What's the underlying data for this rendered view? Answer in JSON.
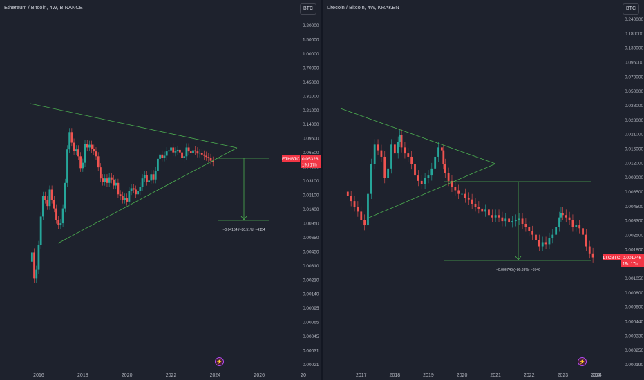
{
  "colors": {
    "background": "#1e222d",
    "up_candle": "#26a69a",
    "down_candle": "#ef5350",
    "trendline": "#4caf50",
    "axis_text": "#b2b5be",
    "price_tag": "#f23645"
  },
  "icons": {
    "flash": "lightning-icon"
  },
  "chart_data": [
    {
      "type": "candlestick",
      "title": "Ethereum / Bitcoin, 4W, BINANCE",
      "currency_button": "BTC",
      "scale": "log",
      "ylim": [
        0.00021,
        2.2
      ],
      "y_ticks": [
        "2.20000",
        "1.50000",
        "1.00000",
        "0.70000",
        "0.45000",
        "0.31000",
        "0.21000",
        "0.14000",
        "0.09500",
        "0.06500",
        "0.04500",
        "0.03100",
        "0.02100",
        "0.01400",
        "0.00950",
        "0.00650",
        "0.00450",
        "0.00310",
        "0.00210",
        "0.00140",
        "0.00095",
        "0.00065",
        "0.00045",
        "0.00031",
        "0.00021"
      ],
      "x_ticks": [
        "2016",
        "2018",
        "2020",
        "2022",
        "2024",
        "2026",
        "20"
      ],
      "x_range": [
        2015.5,
        2027.4
      ],
      "last_price": {
        "symbol": "ETHBTC",
        "value": "0.05328",
        "countdown": "19d 17h"
      },
      "measure_label": "−0.04154 (−80.51%) −4154",
      "close_series": [
        [
          2015.6,
          0.0035
        ],
        [
          2015.7,
          0.0045
        ],
        [
          2015.8,
          0.0022
        ],
        [
          2015.9,
          0.0028
        ],
        [
          2016.0,
          0.0055
        ],
        [
          2016.1,
          0.012
        ],
        [
          2016.2,
          0.021
        ],
        [
          2016.3,
          0.019
        ],
        [
          2016.4,
          0.016
        ],
        [
          2016.5,
          0.025
        ],
        [
          2016.6,
          0.019
        ],
        [
          2016.7,
          0.015
        ],
        [
          2016.8,
          0.011
        ],
        [
          2016.9,
          0.0095
        ],
        [
          2017.0,
          0.01
        ],
        [
          2017.1,
          0.015
        ],
        [
          2017.2,
          0.03
        ],
        [
          2017.3,
          0.075
        ],
        [
          2017.4,
          0.12
        ],
        [
          2017.5,
          0.09
        ],
        [
          2017.6,
          0.072
        ],
        [
          2017.7,
          0.075
        ],
        [
          2017.8,
          0.062
        ],
        [
          2017.9,
          0.045
        ],
        [
          2018.0,
          0.052
        ],
        [
          2018.1,
          0.086
        ],
        [
          2018.2,
          0.079
        ],
        [
          2018.3,
          0.085
        ],
        [
          2018.4,
          0.076
        ],
        [
          2018.5,
          0.071
        ],
        [
          2018.6,
          0.062
        ],
        [
          2018.7,
          0.046
        ],
        [
          2018.8,
          0.034
        ],
        [
          2018.9,
          0.031
        ],
        [
          2019.0,
          0.034
        ],
        [
          2019.1,
          0.03
        ],
        [
          2019.2,
          0.035
        ],
        [
          2019.3,
          0.033
        ],
        [
          2019.4,
          0.028
        ],
        [
          2019.5,
          0.03
        ],
        [
          2019.6,
          0.022
        ],
        [
          2019.7,
          0.021
        ],
        [
          2019.8,
          0.019
        ],
        [
          2019.9,
          0.02
        ],
        [
          2020.0,
          0.018
        ],
        [
          2020.1,
          0.024
        ],
        [
          2020.2,
          0.026
        ],
        [
          2020.3,
          0.025
        ],
        [
          2020.4,
          0.022
        ],
        [
          2020.5,
          0.024
        ],
        [
          2020.6,
          0.027
        ],
        [
          2020.7,
          0.034
        ],
        [
          2020.8,
          0.037
        ],
        [
          2020.9,
          0.031
        ],
        [
          2021.0,
          0.032
        ],
        [
          2021.1,
          0.038
        ],
        [
          2021.2,
          0.033
        ],
        [
          2021.3,
          0.042
        ],
        [
          2021.4,
          0.058
        ],
        [
          2021.5,
          0.065
        ],
        [
          2021.6,
          0.06
        ],
        [
          2021.7,
          0.063
        ],
        [
          2021.8,
          0.071
        ],
        [
          2021.9,
          0.073
        ],
        [
          2022.0,
          0.079
        ],
        [
          2022.1,
          0.069
        ],
        [
          2022.2,
          0.071
        ],
        [
          2022.3,
          0.074
        ],
        [
          2022.4,
          0.069
        ],
        [
          2022.5,
          0.059
        ],
        [
          2022.6,
          0.062
        ],
        [
          2022.7,
          0.079
        ],
        [
          2022.8,
          0.071
        ],
        [
          2022.9,
          0.068
        ],
        [
          2023.0,
          0.073
        ],
        [
          2023.1,
          0.071
        ],
        [
          2023.2,
          0.067
        ],
        [
          2023.3,
          0.068
        ],
        [
          2023.4,
          0.065
        ],
        [
          2023.5,
          0.063
        ],
        [
          2023.6,
          0.061
        ],
        [
          2023.7,
          0.059
        ],
        [
          2023.8,
          0.055
        ],
        [
          2023.9,
          0.053
        ]
      ]
    },
    {
      "type": "candlestick",
      "title": "Litecoin / Bitcoin, 4W, KRAKEN",
      "currency_button": "BTC",
      "scale": "log",
      "ylim": [
        0.00019,
        0.24
      ],
      "y_ticks": [
        "0.240000",
        "0.180000",
        "0.130000",
        "0.095000",
        "0.070000",
        "0.050000",
        "0.038000",
        "0.028000",
        "0.021000",
        "0.016000",
        "0.012000",
        "0.009000",
        "0.006500",
        "0.004500",
        "0.003300",
        "0.002500",
        "0.001800",
        "0.001400",
        "0.001050",
        "0.000800",
        "0.000600",
        "0.000440",
        "0.000330",
        "0.000250",
        "0.000190"
      ],
      "x_ticks": [
        "2017",
        "2018",
        "2019",
        "2020",
        "2021",
        "2022",
        "2023",
        "2024",
        "202"
      ],
      "x_range": [
        2016.1,
        2024.7
      ],
      "last_price": {
        "symbol": "LTCBTC",
        "value": "0.001746",
        "countdown": "19d 17h"
      },
      "measure_label": "−0.006746 (−80.39%) −6746",
      "close_series": [
        [
          2016.5,
          0.0068
        ],
        [
          2016.6,
          0.0062
        ],
        [
          2016.7,
          0.0056
        ],
        [
          2016.8,
          0.005
        ],
        [
          2016.9,
          0.0045
        ],
        [
          2017.0,
          0.0038
        ],
        [
          2017.1,
          0.0034
        ],
        [
          2017.2,
          0.0065
        ],
        [
          2017.3,
          0.012
        ],
        [
          2017.4,
          0.018
        ],
        [
          2017.5,
          0.016
        ],
        [
          2017.6,
          0.014
        ],
        [
          2017.7,
          0.009
        ],
        [
          2017.8,
          0.011
        ],
        [
          2017.9,
          0.018
        ],
        [
          2018.0,
          0.015
        ],
        [
          2018.1,
          0.019
        ],
        [
          2018.15,
          0.022
        ],
        [
          2018.2,
          0.017
        ],
        [
          2018.3,
          0.015
        ],
        [
          2018.4,
          0.014
        ],
        [
          2018.5,
          0.012
        ],
        [
          2018.6,
          0.0095
        ],
        [
          2018.7,
          0.0085
        ],
        [
          2018.8,
          0.008
        ],
        [
          2018.9,
          0.009
        ],
        [
          2019.0,
          0.0095
        ],
        [
          2019.1,
          0.011
        ],
        [
          2019.2,
          0.014
        ],
        [
          2019.3,
          0.017
        ],
        [
          2019.4,
          0.016
        ],
        [
          2019.45,
          0.012
        ],
        [
          2019.5,
          0.01
        ],
        [
          2019.6,
          0.0085
        ],
        [
          2019.7,
          0.0075
        ],
        [
          2019.8,
          0.007
        ],
        [
          2019.9,
          0.0065
        ],
        [
          2020.0,
          0.0065
        ],
        [
          2020.1,
          0.006
        ],
        [
          2020.2,
          0.0058
        ],
        [
          2020.3,
          0.0053
        ],
        [
          2020.4,
          0.005
        ],
        [
          2020.5,
          0.0048
        ],
        [
          2020.6,
          0.0045
        ],
        [
          2020.7,
          0.0047
        ],
        [
          2020.8,
          0.0042
        ],
        [
          2020.9,
          0.004
        ],
        [
          2021.0,
          0.0042
        ],
        [
          2021.1,
          0.004
        ],
        [
          2021.2,
          0.0037
        ],
        [
          2021.3,
          0.0039
        ],
        [
          2021.4,
          0.0036
        ],
        [
          2021.5,
          0.0037
        ],
        [
          2021.6,
          0.0038
        ],
        [
          2021.7,
          0.0039
        ],
        [
          2021.8,
          0.0035
        ],
        [
          2021.9,
          0.0033
        ],
        [
          2022.0,
          0.003
        ],
        [
          2022.1,
          0.0028
        ],
        [
          2022.2,
          0.0025
        ],
        [
          2022.3,
          0.0022
        ],
        [
          2022.4,
          0.0024
        ],
        [
          2022.5,
          0.0023
        ],
        [
          2022.6,
          0.0026
        ],
        [
          2022.7,
          0.0028
        ],
        [
          2022.8,
          0.0033
        ],
        [
          2022.9,
          0.004
        ],
        [
          2022.95,
          0.0044
        ],
        [
          2023.0,
          0.0042
        ],
        [
          2023.1,
          0.004
        ],
        [
          2023.2,
          0.0038
        ],
        [
          2023.3,
          0.0033
        ],
        [
          2023.4,
          0.0034
        ],
        [
          2023.5,
          0.0032
        ],
        [
          2023.6,
          0.0028
        ],
        [
          2023.7,
          0.0022
        ],
        [
          2023.8,
          0.0019
        ],
        [
          2023.9,
          0.00175
        ]
      ]
    }
  ]
}
